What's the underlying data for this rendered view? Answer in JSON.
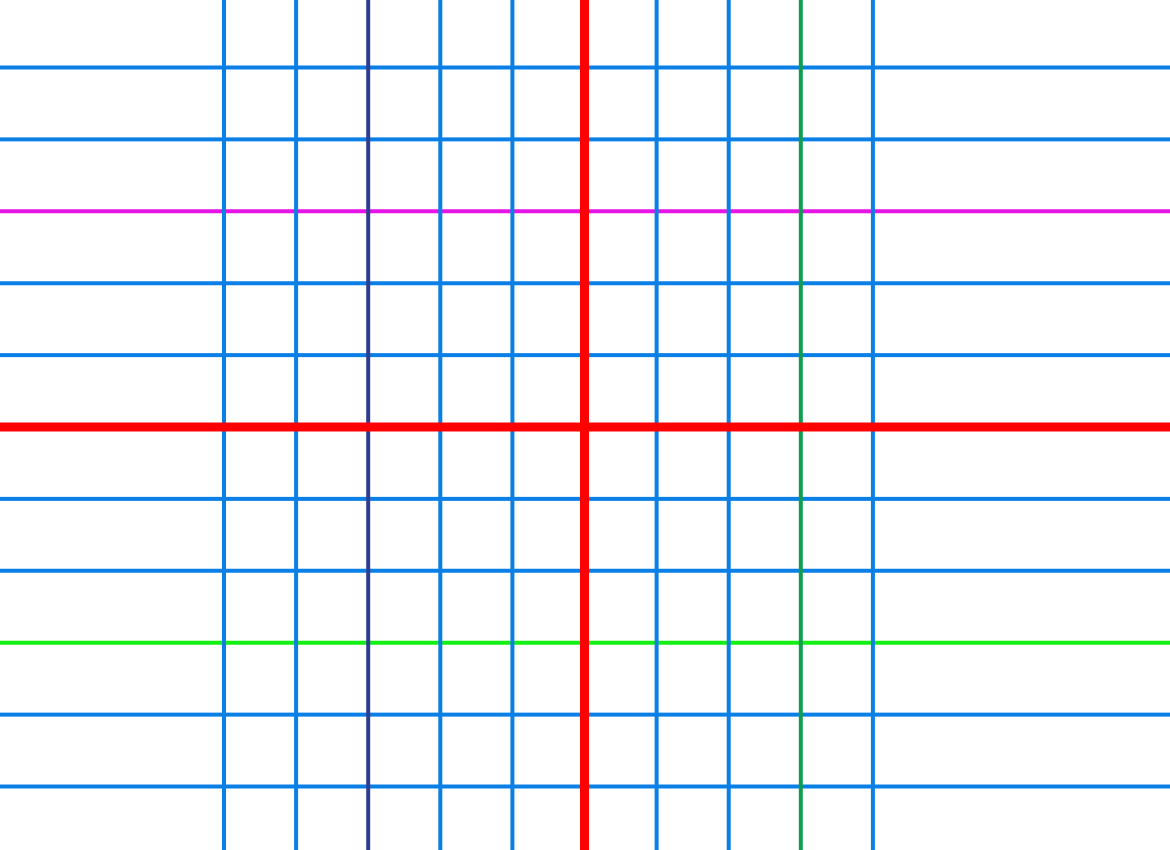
{
  "grid": {
    "background_color": "#ffffff",
    "default_line_color": "#0a7fe6",
    "vertical_lines": [
      {
        "role": "grid",
        "color": "#0a7fe6"
      },
      {
        "role": "grid",
        "color": "#0a7fe6"
      },
      {
        "role": "highlight",
        "color": "#2e3d91"
      },
      {
        "role": "grid",
        "color": "#0a7fe6"
      },
      {
        "role": "grid",
        "color": "#0a7fe6"
      },
      {
        "role": "axis",
        "color": "#ff0000"
      },
      {
        "role": "grid",
        "color": "#0a7fe6"
      },
      {
        "role": "grid",
        "color": "#0a7fe6"
      },
      {
        "role": "highlight",
        "color": "#0f9e50"
      },
      {
        "role": "grid",
        "color": "#0a7fe6"
      }
    ],
    "horizontal_lines": [
      {
        "role": "grid",
        "color": "#0a7fe6"
      },
      {
        "role": "grid",
        "color": "#0a7fe6"
      },
      {
        "role": "highlight",
        "color": "#e614e6"
      },
      {
        "role": "grid",
        "color": "#0a7fe6"
      },
      {
        "role": "grid",
        "color": "#0a7fe6"
      },
      {
        "role": "axis",
        "color": "#ff0000"
      },
      {
        "role": "grid",
        "color": "#0a7fe6"
      },
      {
        "role": "grid",
        "color": "#0a7fe6"
      },
      {
        "role": "highlight",
        "color": "#14f014"
      },
      {
        "role": "grid",
        "color": "#0a7fe6"
      },
      {
        "role": "grid",
        "color": "#0a7fe6"
      }
    ]
  }
}
